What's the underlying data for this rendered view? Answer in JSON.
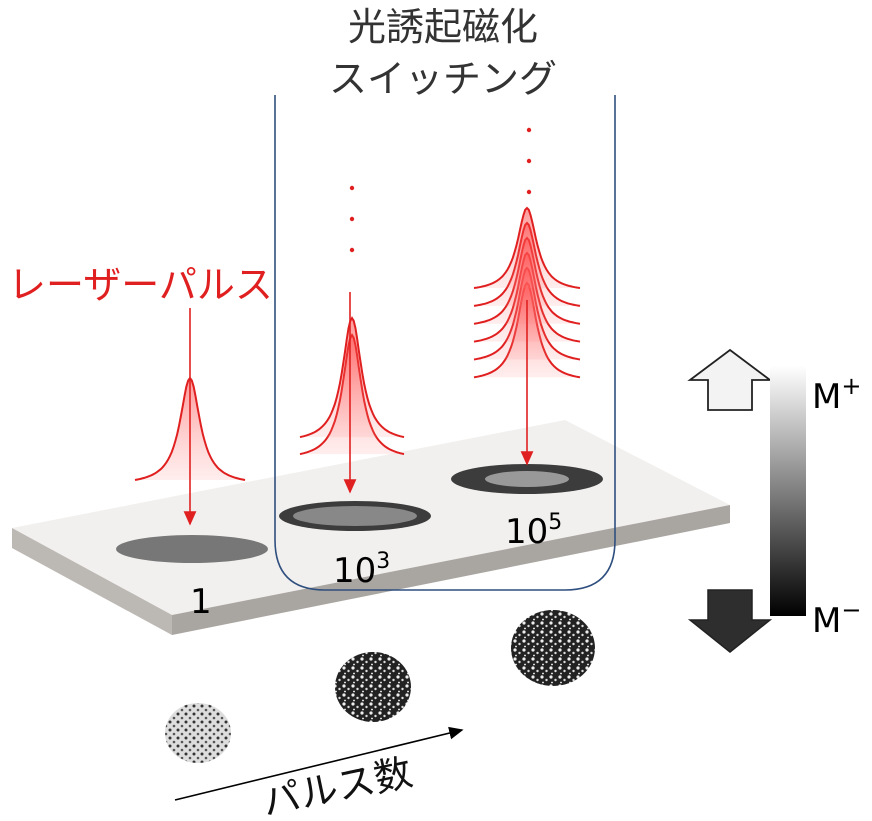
{
  "title": {
    "line1": "光誘起磁化",
    "line2": "スイッチング"
  },
  "laser_label": "レーザーパルス",
  "pulse_counts": [
    {
      "base": "1"
    },
    {
      "base": "10",
      "sup": "3"
    },
    {
      "base": "10",
      "sup": "5"
    }
  ],
  "magnetization": {
    "up": {
      "base": "M",
      "sup": "+"
    },
    "down": {
      "base": "M",
      "sup": "−"
    }
  },
  "axis_label": "パルス数"
}
